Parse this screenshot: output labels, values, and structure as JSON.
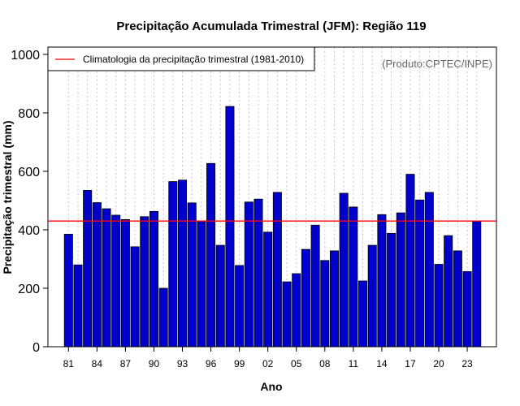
{
  "chart_data": {
    "type": "bar",
    "title": "Precipitação Acumulada Trimestral (JFM): Região 119",
    "xlabel": "Ano",
    "ylabel": "Precipitação trimestral (mm)",
    "ylim": [
      0,
      1000
    ],
    "yticks": [
      0,
      200,
      400,
      600,
      800,
      1000
    ],
    "xtick_labels": [
      "81",
      "84",
      "87",
      "90",
      "93",
      "96",
      "99",
      "02",
      "05",
      "08",
      "11",
      "14",
      "17",
      "20",
      "23"
    ],
    "xtick_step": 3,
    "grid": "vertical-dotted",
    "bar_color": "#0000cc",
    "climatology_color": "#ff0000",
    "categories": [
      "1981",
      "1982",
      "1983",
      "1984",
      "1985",
      "1986",
      "1987",
      "1988",
      "1989",
      "1990",
      "1991",
      "1992",
      "1993",
      "1994",
      "1995",
      "1996",
      "1997",
      "1998",
      "1999",
      "2000",
      "2001",
      "2002",
      "2003",
      "2004",
      "2005",
      "2006",
      "2007",
      "2008",
      "2009",
      "2010",
      "2011",
      "2012",
      "2013",
      "2014",
      "2015",
      "2016",
      "2017",
      "2018",
      "2019",
      "2020",
      "2021",
      "2022",
      "2023",
      "2024"
    ],
    "values": [
      385,
      280,
      535,
      493,
      472,
      450,
      435,
      342,
      445,
      463,
      200,
      565,
      570,
      492,
      430,
      627,
      347,
      822,
      278,
      495,
      505,
      392,
      528,
      222,
      250,
      333,
      416,
      295,
      328,
      525,
      478,
      225,
      347,
      452,
      388,
      458,
      590,
      502,
      528,
      282,
      380,
      328,
      257,
      430
    ],
    "climatology": 430,
    "legend": {
      "label": "Climatologia da precipitação trimestral (1981-2010)",
      "position": "top-left"
    },
    "credit": "(Produto:CPTEC/INPE)"
  }
}
